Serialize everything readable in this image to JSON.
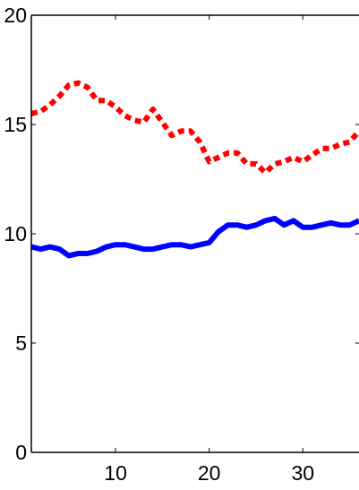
{
  "chart_data": {
    "type": "line",
    "title": "",
    "xlabel": "",
    "ylabel": "",
    "xlim": [
      1,
      36
    ],
    "ylim": [
      0,
      20
    ],
    "grid": false,
    "x_ticks": [
      "10",
      "20",
      "30"
    ],
    "y_ticks": [
      "0",
      "5",
      "10",
      "15",
      "20"
    ],
    "x": [
      1,
      2,
      3,
      4,
      5,
      6,
      7,
      8,
      9,
      10,
      11,
      12,
      13,
      14,
      15,
      16,
      17,
      18,
      19,
      20,
      21,
      22,
      23,
      24,
      25,
      26,
      27,
      28,
      29,
      30,
      31,
      32,
      33,
      34,
      35,
      36
    ],
    "series": [
      {
        "style": "dotted",
        "color": "#ff0000",
        "values": [
          15.5,
          15.6,
          15.9,
          16.3,
          16.8,
          16.9,
          16.7,
          16.1,
          16.1,
          15.8,
          15.4,
          15.2,
          15.1,
          15.7,
          15.1,
          14.5,
          14.7,
          14.7,
          14.2,
          13.3,
          13.5,
          13.7,
          13.7,
          13.2,
          13.2,
          12.8,
          13.2,
          13.3,
          13.5,
          13.3,
          13.6,
          13.9,
          13.9,
          14.1,
          14.2,
          14.7
        ]
      },
      {
        "style": "solid",
        "color": "#0000ff",
        "values": [
          9.4,
          9.3,
          9.4,
          9.3,
          9.0,
          9.1,
          9.1,
          9.2,
          9.4,
          9.5,
          9.5,
          9.4,
          9.3,
          9.3,
          9.4,
          9.5,
          9.5,
          9.4,
          9.5,
          9.6,
          10.1,
          10.4,
          10.4,
          10.3,
          10.4,
          10.6,
          10.7,
          10.4,
          10.6,
          10.3,
          10.3,
          10.4,
          10.5,
          10.4,
          10.4,
          10.6
        ]
      }
    ]
  }
}
